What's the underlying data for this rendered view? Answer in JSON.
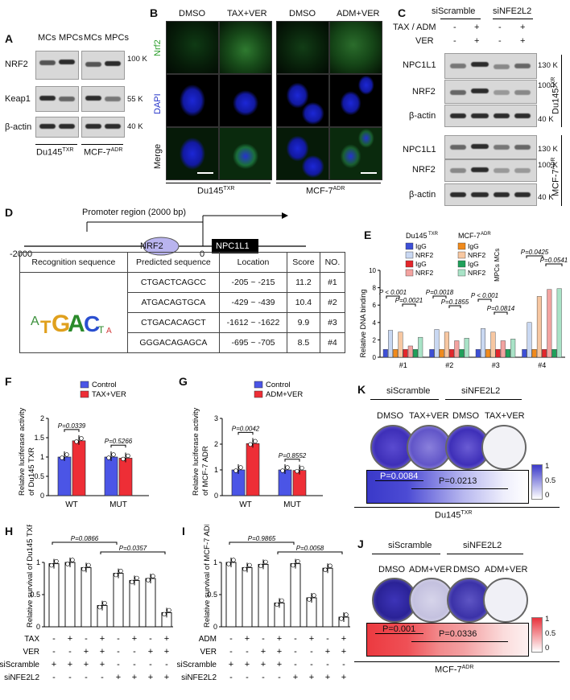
{
  "panels": {
    "A": "A",
    "B": "B",
    "C": "C",
    "D": "D",
    "E": "E",
    "F": "F",
    "G": "G",
    "H": "H",
    "I": "I",
    "J": "J",
    "K": "K"
  },
  "panelA": {
    "lanes": [
      "MCs",
      "MPCs",
      "MCs",
      "MPCs"
    ],
    "rows": [
      "NRF2",
      "Keap1",
      "β-actin"
    ],
    "sizes": [
      "100 K",
      "55 K",
      "40 K"
    ],
    "groups": [
      "Du145",
      "MCF-7"
    ],
    "group_sup": [
      "TXR",
      "ADR"
    ]
  },
  "panelB": {
    "cols": [
      "DMSO",
      "TAX+VER",
      "DMSO",
      "ADM+VER"
    ],
    "rows": [
      "Nrf2",
      "DAPI",
      "Merge"
    ],
    "groups": [
      "Du145",
      "MCF-7"
    ],
    "group_sup": [
      "TXR",
      "ADR"
    ]
  },
  "panelC": {
    "header_si": [
      "siScramble",
      "siNFE2L2"
    ],
    "tax_adm_label": "TAX / ADM",
    "ver_label": "VER",
    "tax_adm_signs": [
      "-",
      "+",
      "-",
      "+"
    ],
    "ver_signs": [
      "-",
      "+",
      "-",
      "+"
    ],
    "rows_top": [
      "NPC1L1",
      "NRF2",
      "β-actin"
    ],
    "rows_bottom": [
      "NPC1L1",
      "NRF2",
      "β-actin"
    ],
    "sizes": [
      "130 K",
      "100 K",
      "40 K",
      "130 K",
      "100 K",
      "40 K"
    ],
    "side": [
      "Du145",
      "MCF-7"
    ],
    "side_sup": [
      "TXR",
      "ADR"
    ]
  },
  "panelD": {
    "promoter": "Promoter region (2000 bp)",
    "start": "-2000",
    "zero": "0",
    "tf": "NRF2",
    "gene": "NPC1L1",
    "headers": [
      "Recognition sequence",
      "Predicted sequence",
      "Location",
      "Score",
      "NO."
    ],
    "rows": [
      [
        "CTGACTCAGCC",
        "-205 ~ -215",
        "11.2",
        "#1"
      ],
      [
        "ATGACAGTGCA",
        "-429 ~ -439",
        "10.4",
        "#2"
      ],
      [
        "CTGACACAGCT",
        "-1612 ~ -1622",
        "9.9",
        "#3"
      ],
      [
        "GGGACAGAGCA",
        "-695 ~ -705",
        "8.5",
        "#4"
      ]
    ]
  },
  "panelE": {
    "ylabel": "Relative DNA binding",
    "legend_du": "Du145",
    "legend_mcf": "MCF-7",
    "legend_du_sup": "TXR",
    "legend_mcf_sup": "ADR",
    "legend_items": [
      "IgG",
      "NRF2",
      "IgG",
      "NRF2"
    ],
    "mcs": "MCs",
    "mpcs": "MPCs",
    "pvals": [
      "P < 0.001",
      "P=0.0021",
      "P=0.0018",
      "P=0.1855",
      "P < 0.001",
      "P=0.0814",
      "P=0.0425",
      "P=0.0541"
    ],
    "colors": {
      "duIgG_MC": "#3d4fd6",
      "duNRF2_MC": "#c9d8f2",
      "duIgG_MPC": "#e3262b",
      "duNRF2_MPC": "#f3a3a0",
      "mcfIgG_MC": "#f08a1c",
      "mcfNRF2_MC": "#f7c7a1",
      "mcfIgG_MPC": "#1fa05a",
      "mcfNRF2_MPC": "#a9e3c7"
    }
  },
  "panelF": {
    "legend": [
      "Control",
      "TAX+VER"
    ],
    "ylabel": "Relative luciferase activity",
    "ylabel2": "of Du145",
    "ysup": "TXR",
    "p": [
      "P=0.0339",
      "P=0.5266"
    ],
    "colors": [
      "#4b55e6",
      "#ee2e36"
    ]
  },
  "panelG": {
    "legend": [
      "Control",
      "ADM+VER"
    ],
    "ylabel": "Relative luciferase activity",
    "ylabel2": "of MCF-7",
    "ysup": "ADR",
    "p": [
      "P=0.0042",
      "P=0.8552"
    ],
    "colors": [
      "#4b55e6",
      "#ee2e36"
    ]
  },
  "panelH": {
    "ylabel": "Relative survival of Du145",
    "ysup": "TXR",
    "p": [
      "P=0.0866",
      "P=0.0357"
    ],
    "rows": [
      {
        "label": "TAX",
        "signs": [
          "-",
          "+",
          "-",
          "+",
          "-",
          "+",
          "-",
          "+"
        ]
      },
      {
        "label": "VER",
        "signs": [
          "-",
          "-",
          "+",
          "+",
          "-",
          "-",
          "+",
          "+"
        ]
      },
      {
        "label": "siScramble",
        "signs": [
          "+",
          "+",
          "+",
          "+",
          "-",
          "-",
          "-",
          "-"
        ]
      },
      {
        "label": "siNFE2L2",
        "signs": [
          "-",
          "-",
          "-",
          "-",
          "+",
          "+",
          "+",
          "+"
        ]
      }
    ]
  },
  "panelI": {
    "ylabel": "Relative survival of MCF-7",
    "ysup": "ADR",
    "p": [
      "P=0.9865",
      "P=0.0058"
    ],
    "rows": [
      {
        "label": "ADM",
        "signs": [
          "-",
          "+",
          "-",
          "+",
          "-",
          "+",
          "-",
          "+"
        ]
      },
      {
        "label": "VER",
        "signs": [
          "-",
          "-",
          "+",
          "+",
          "-",
          "-",
          "+",
          "+"
        ]
      },
      {
        "label": "siScramble",
        "signs": [
          "+",
          "+",
          "+",
          "+",
          "-",
          "-",
          "-",
          "-"
        ]
      },
      {
        "label": "siNFE2L2",
        "signs": [
          "-",
          "-",
          "-",
          "-",
          "+",
          "+",
          "+",
          "+"
        ]
      }
    ]
  },
  "panelK": {
    "si": [
      "siScramble",
      "siNFE2L2"
    ],
    "cols": [
      "DMSO",
      "TAX+VER",
      "DMSO",
      "TAX+VER"
    ],
    "p": [
      "P=0.0084",
      "P=0.0213"
    ],
    "scale": [
      "1",
      "0.5",
      "0"
    ],
    "cell": "Du145",
    "cell_sup": "TXR",
    "color": "#3a39c9"
  },
  "panelJ": {
    "si": [
      "siScramble",
      "siNFE2L2"
    ],
    "cols": [
      "DMSO",
      "ADM+VER",
      "DMSO",
      "ADM+VER"
    ],
    "p": [
      "P=0.001",
      "P=0.0336"
    ],
    "scale": [
      "1",
      "0.5",
      "0"
    ],
    "cell": "MCF-7",
    "cell_sup": "ADR",
    "color": "#e8323c"
  },
  "chart_data": [
    {
      "type": "bar",
      "panel": "E",
      "categories": [
        "#1",
        "#2",
        "#3",
        "#4"
      ],
      "ylim": [
        0,
        10
      ],
      "yticks": [
        0,
        2,
        4,
        6,
        8,
        10
      ],
      "series": [
        {
          "name": "IgG",
          "values": [
            0.9,
            0.9,
            0.9,
            0.9
          ]
        },
        {
          "name": "NRF2",
          "values": [
            3.1,
            3.2,
            3.3,
            4.0
          ]
        },
        {
          "name": "IgG",
          "values": [
            0.9,
            0.9,
            0.9,
            0.9
          ]
        },
        {
          "name": "NRF2",
          "values": [
            1.3,
            1.9,
            1.9,
            7.8
          ]
        },
        {
          "name": "IgG",
          "values": [
            0.9,
            0.9,
            0.9,
            0.9
          ]
        },
        {
          "name": "NRF2",
          "values": [
            2.9,
            2.9,
            2.9,
            7.0
          ]
        },
        {
          "name": "IgG",
          "values": [
            0.9,
            0.9,
            0.9,
            0.9
          ]
        },
        {
          "name": "NRF2",
          "values": [
            2.3,
            2.2,
            2.1,
            7.9
          ]
        }
      ]
    },
    {
      "type": "bar",
      "panel": "F",
      "categories": [
        "WT",
        "MUT"
      ],
      "ylim": [
        0,
        2
      ],
      "yticks": [
        0,
        0.5,
        1.0,
        1.5,
        2.0
      ],
      "series": [
        {
          "name": "Control",
          "values": [
            1.0,
            1.0
          ]
        },
        {
          "name": "TAX+VER",
          "values": [
            1.42,
            0.97
          ]
        }
      ]
    },
    {
      "type": "bar",
      "panel": "G",
      "categories": [
        "WT",
        "MUT"
      ],
      "ylim": [
        0,
        3
      ],
      "yticks": [
        0,
        1,
        2,
        3
      ],
      "series": [
        {
          "name": "Control",
          "values": [
            1.0,
            1.0
          ]
        },
        {
          "name": "ADM+VER",
          "values": [
            2.02,
            0.98
          ]
        }
      ]
    },
    {
      "type": "bar",
      "panel": "H",
      "categories": [
        "1",
        "2",
        "3",
        "4",
        "5",
        "6",
        "7",
        "8"
      ],
      "ylim": [
        0,
        1.0
      ],
      "yticks": [
        0.0,
        0.5,
        1.0
      ],
      "values": [
        0.98,
        1.0,
        0.92,
        0.33,
        0.83,
        0.72,
        0.75,
        0.22
      ]
    },
    {
      "type": "bar",
      "panel": "I",
      "categories": [
        "1",
        "2",
        "3",
        "4",
        "5",
        "6",
        "7",
        "8"
      ],
      "ylim": [
        0,
        1.0
      ],
      "yticks": [
        0.0,
        0.5,
        1.0
      ],
      "values": [
        1.0,
        0.92,
        0.97,
        0.37,
        0.98,
        0.45,
        0.91,
        0.15
      ]
    }
  ]
}
